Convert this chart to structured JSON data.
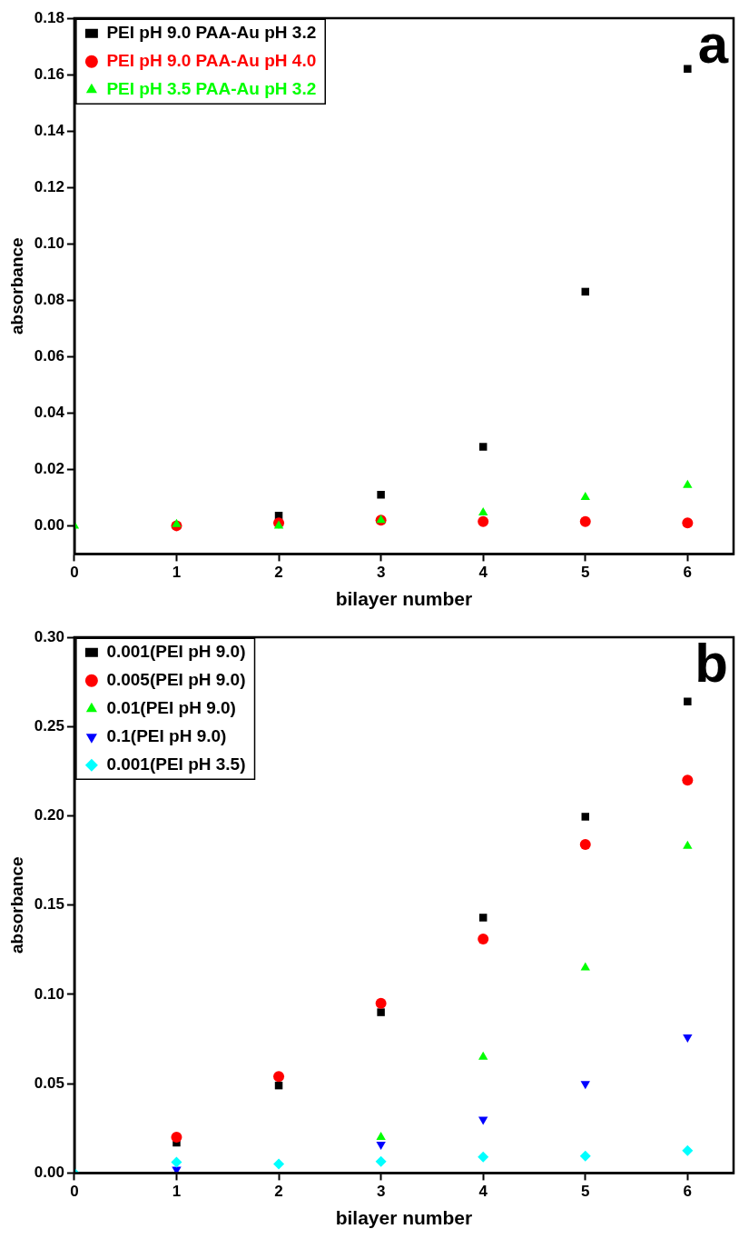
{
  "chart_data": [
    {
      "type": "scatter",
      "xlabel": "bilayer number",
      "ylabel": "absorbance",
      "annotations": [
        "a"
      ],
      "legend": "top left",
      "grid": false,
      "x": [
        0,
        1,
        2,
        3,
        4,
        5,
        6
      ],
      "xlim": [
        0,
        6.45
      ],
      "xticks": [
        0,
        1,
        2,
        3,
        4,
        5,
        6
      ],
      "ylim": [
        -0.01,
        0.18
      ],
      "yticks": [
        {
          "value": 0,
          "label": "0.00"
        },
        {
          "value": 0.02,
          "label": "0.02"
        },
        {
          "value": 0.04,
          "label": "0.04"
        },
        {
          "value": 0.06,
          "label": "0.06"
        },
        {
          "value": 0.08,
          "label": "0.08"
        },
        {
          "value": 0.1,
          "label": "0.10"
        },
        {
          "value": 0.12,
          "label": "0.12"
        },
        {
          "value": 0.14,
          "label": "0.14"
        },
        {
          "value": 0.16,
          "label": "0.16"
        },
        {
          "value": 0.18,
          "label": "0.18"
        }
      ],
      "series": [
        {
          "name": "PEI pH 9.0 PAA-Au pH 3.2",
          "color": "#000000",
          "marker": "square",
          "values": [
            null,
            null,
            0.0036,
            0.011,
            0.028,
            0.083,
            0.162
          ]
        },
        {
          "name": "PEI pH 9.0 PAA-Au pH 4.0",
          "color": "#ff0000",
          "marker": "circle",
          "values": [
            null,
            0,
            0.001,
            0.002,
            0.0015,
            0.0015,
            0.001
          ]
        },
        {
          "name": "PEI pH 3.5 PAA-Au pH 3.2",
          "color": "#00ff00",
          "marker": "triangle",
          "values": [
            0,
            0.0005,
            0,
            0.002,
            0.0046,
            0.0101,
            0.0144
          ]
        }
      ]
    },
    {
      "type": "scatter",
      "xlabel": "bilayer number",
      "ylabel": "absorbance",
      "annotations": [
        "b"
      ],
      "legend": "top left",
      "grid": false,
      "x": [
        0,
        1,
        2,
        3,
        4,
        5,
        6
      ],
      "xlim": [
        0,
        6.45
      ],
      "xticks": [
        0,
        1,
        2,
        3,
        4,
        5,
        6
      ],
      "ylim": [
        0,
        0.3
      ],
      "yticks": [
        {
          "value": 0,
          "label": "0.00"
        },
        {
          "value": 0.05,
          "label": "0.05"
        },
        {
          "value": 0.1,
          "label": "0.10"
        },
        {
          "value": 0.15,
          "label": "0.15"
        },
        {
          "value": 0.2,
          "label": "0.20"
        },
        {
          "value": 0.25,
          "label": "0.25"
        },
        {
          "value": 0.3,
          "label": "0.30"
        }
      ],
      "series": [
        {
          "name": "0.001(PEI pH 9.0)",
          "color": "#000000",
          "marker": "square",
          "values": [
            null,
            0.017,
            0.049,
            0.09,
            0.143,
            0.1995,
            0.264
          ]
        },
        {
          "name": "0.005(PEI pH 9.0)",
          "color": "#ff0000",
          "marker": "circle",
          "values": [
            null,
            0.02,
            0.054,
            0.095,
            0.131,
            0.184,
            0.22
          ]
        },
        {
          "name": "0.01(PEI pH 9.0)",
          "color": "#00ff00",
          "marker": "triangle",
          "values": [
            null,
            null,
            null,
            0.02,
            0.065,
            0.115,
            0.183
          ]
        },
        {
          "name": "0.1(PEI pH 9.0)",
          "color": "#0000ff",
          "marker": "triangle-down",
          "values": [
            null,
            0.002,
            null,
            0.016,
            0.03,
            0.05,
            0.076
          ]
        },
        {
          "name": "0.001(PEI pH 3.5)",
          "color": "#00ffff",
          "marker": "diamond",
          "values": [
            0,
            0.006,
            0.005,
            0.0065,
            0.009,
            0.0095,
            0.0125
          ]
        }
      ]
    }
  ]
}
